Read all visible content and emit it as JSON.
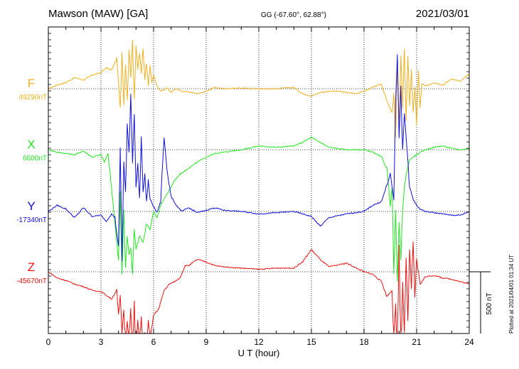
{
  "header": {
    "station": "Mawson (MAW)  [GA]",
    "coords": "GG (-67.60°,  62.88°)",
    "date": "2021/03/01"
  },
  "plotted_note": "Plotted at 2021/04/01 01:34 UT",
  "colors": {
    "F": "#f0b020",
    "X": "#22e622",
    "Y": "#1010dd",
    "Z": "#ee1111"
  },
  "chart_data": {
    "type": "line",
    "xlabel": "U T (hour)",
    "xlim": [
      0,
      24
    ],
    "x_ticks": [
      "0",
      "3",
      "6",
      "9",
      "12",
      "15",
      "18",
      "21",
      "24"
    ],
    "scale_bar": {
      "label": "500 nT",
      "value_nT": 500
    },
    "series": [
      {
        "key": "F",
        "name": "F",
        "baseline_label": "49290nT",
        "color": "#f0b020",
        "x": [
          0,
          0.5,
          1,
          1.5,
          2,
          2.5,
          3,
          3.3,
          3.6,
          3.9,
          4.1,
          4.2,
          4.3,
          4.4,
          4.5,
          4.6,
          4.7,
          4.8,
          4.9,
          5.0,
          5.1,
          5.2,
          5.3,
          5.4,
          5.5,
          5.6,
          5.7,
          5.8,
          5.9,
          6.0,
          6.2,
          6.4,
          6.6,
          6.8,
          7.0,
          7.3,
          7.6,
          8,
          8.5,
          9,
          9.5,
          10,
          11,
          12,
          13,
          14,
          14.5,
          15,
          15.5,
          16,
          16.5,
          17,
          17.5,
          18,
          18.5,
          19,
          19.3,
          19.6,
          19.7,
          19.8,
          19.9,
          20.0,
          20.1,
          20.2,
          20.3,
          20.4,
          20.5,
          20.6,
          20.7,
          20.8,
          20.9,
          21.0,
          21.1,
          21.2,
          21.3,
          21.5,
          22,
          22.5,
          23,
          23.5,
          24
        ],
        "y": [
          0,
          30,
          50,
          90,
          70,
          110,
          130,
          170,
          150,
          240,
          -150,
          300,
          -120,
          200,
          -100,
          320,
          90,
          400,
          -80,
          340,
          160,
          290,
          120,
          330,
          80,
          210,
          30,
          180,
          50,
          110,
          20,
          -20,
          -10,
          5,
          -30,
          0,
          -20,
          -25,
          -40,
          -20,
          10,
          0,
          5,
          0,
          0,
          10,
          -40,
          -60,
          -30,
          -20,
          -20,
          -30,
          -40,
          -20,
          10,
          40,
          -100,
          -200,
          -30,
          -400,
          200,
          -300,
          280,
          -150,
          330,
          -250,
          250,
          -150,
          160,
          -200,
          20,
          -300,
          140,
          -150,
          40,
          20,
          50,
          30,
          80,
          60,
          120
        ]
      },
      {
        "key": "X",
        "name": "X",
        "baseline_label": "6600nT",
        "color": "#22e622",
        "x": [
          0,
          0.5,
          1,
          1.5,
          2,
          2.5,
          3,
          3.2,
          3.4,
          3.6,
          3.8,
          4.0,
          4.1,
          4.2,
          4.3,
          4.4,
          4.5,
          4.6,
          4.7,
          4.8,
          4.9,
          5.0,
          5.2,
          5.4,
          5.6,
          5.8,
          6.0,
          6.2,
          6.4,
          6.6,
          6.8,
          7.0,
          7.2,
          7.5,
          8,
          8.5,
          9,
          9.5,
          10,
          11,
          12,
          13,
          14,
          14.5,
          15,
          15.5,
          16,
          17,
          18,
          18.5,
          19,
          19.3,
          19.5,
          19.6,
          19.7,
          19.8,
          19.9,
          20.0,
          20.1,
          20.2,
          20.3,
          20.4,
          20.6,
          21,
          21.5,
          22,
          22.5,
          23,
          23.5,
          24
        ],
        "y": [
          0,
          -20,
          -30,
          -40,
          -10,
          -60,
          -40,
          -100,
          -30,
          -300,
          -600,
          -900,
          -350,
          -1000,
          -500,
          -950,
          -700,
          -850,
          -800,
          -1000,
          -650,
          -800,
          -700,
          -750,
          -600,
          -650,
          -500,
          -550,
          -450,
          -400,
          -350,
          -300,
          -250,
          -200,
          -150,
          -100,
          -60,
          -30,
          -20,
          0,
          30,
          20,
          30,
          60,
          100,
          60,
          20,
          0,
          0,
          -20,
          -60,
          -150,
          -450,
          -300,
          -1000,
          -500,
          -1050,
          -600,
          -900,
          -500,
          -300,
          -200,
          -80,
          -40,
          0,
          20,
          30,
          10,
          0,
          10
        ]
      },
      {
        "key": "Y",
        "name": "Y",
        "baseline_label": "-17340nT",
        "color": "#1010dd",
        "x": [
          0,
          0.5,
          1,
          1.5,
          2,
          2.5,
          3,
          3.3,
          3.6,
          3.8,
          4.0,
          4.1,
          4.2,
          4.3,
          4.4,
          4.5,
          4.6,
          4.7,
          4.8,
          4.9,
          5.0,
          5.1,
          5.2,
          5.3,
          5.4,
          5.5,
          5.6,
          5.7,
          5.8,
          6.0,
          6.2,
          6.4,
          6.6,
          6.8,
          7.0,
          7.3,
          7.6,
          8,
          8.5,
          9,
          9.5,
          10,
          11,
          12,
          13,
          14,
          15,
          15.5,
          16,
          17,
          18,
          18.5,
          19,
          19.5,
          19.7,
          19.8,
          19.9,
          20.0,
          20.1,
          20.2,
          20.3,
          20.4,
          20.6,
          20.8,
          21.0,
          21.2,
          21.5,
          22,
          22.5,
          23,
          23.5,
          24
        ],
        "y": [
          0,
          50,
          20,
          -50,
          30,
          -40,
          -30,
          -80,
          -20,
          -50,
          -300,
          500,
          -400,
          400,
          150,
          700,
          480,
          950,
          400,
          800,
          200,
          380,
          100,
          600,
          150,
          300,
          80,
          250,
          100,
          40,
          -10,
          80,
          600,
          300,
          120,
          50,
          0,
          30,
          -10,
          10,
          30,
          10,
          0,
          -20,
          -10,
          0,
          -40,
          -120,
          -50,
          -20,
          0,
          50,
          80,
          300,
          100,
          900,
          1250,
          600,
          1000,
          500,
          800,
          600,
          200,
          100,
          50,
          20,
          0,
          -10,
          -20,
          -30,
          -30,
          0
        ]
      },
      {
        "key": "Z",
        "name": "Z",
        "baseline_label": "-45670nT",
        "color": "#ee1111",
        "x": [
          0,
          0.5,
          1,
          1.5,
          2,
          2.5,
          3,
          3.3,
          3.6,
          3.9,
          4.0,
          4.1,
          4.2,
          4.3,
          4.4,
          4.5,
          4.6,
          4.7,
          4.8,
          4.9,
          5.0,
          5.1,
          5.2,
          5.3,
          5.4,
          5.5,
          5.6,
          5.7,
          5.8,
          6.0,
          6.3,
          6.6,
          6.9,
          7.2,
          7.5,
          7.8,
          8,
          8.5,
          9,
          9.5,
          10,
          11,
          12,
          13,
          14,
          14.5,
          15,
          15.5,
          16,
          17,
          18,
          18.5,
          19,
          19.3,
          19.6,
          19.7,
          19.8,
          19.9,
          20.0,
          20.1,
          20.2,
          20.3,
          20.4,
          20.5,
          20.6,
          20.7,
          20.8,
          20.9,
          21.0,
          21.2,
          21.5,
          22,
          22.5,
          23,
          23.5,
          24
        ],
        "y": [
          0,
          -50,
          -70,
          -100,
          -120,
          -150,
          -160,
          -190,
          -220,
          -150,
          -350,
          -200,
          -500,
          -300,
          -620,
          -400,
          -550,
          -300,
          -700,
          -250,
          -750,
          -400,
          -600,
          -350,
          -800,
          -500,
          -650,
          -400,
          -550,
          -350,
          -300,
          -150,
          -100,
          -80,
          -50,
          50,
          50,
          100,
          80,
          50,
          40,
          30,
          20,
          30,
          30,
          80,
          180,
          100,
          40,
          70,
          0,
          -20,
          -80,
          -200,
          -150,
          -600,
          -250,
          -700,
          200,
          -800,
          -100,
          -500,
          120,
          -400,
          180,
          -150,
          230,
          -200,
          100,
          -100,
          -40,
          -30,
          -50,
          -60,
          -80,
          -100
        ]
      }
    ]
  }
}
